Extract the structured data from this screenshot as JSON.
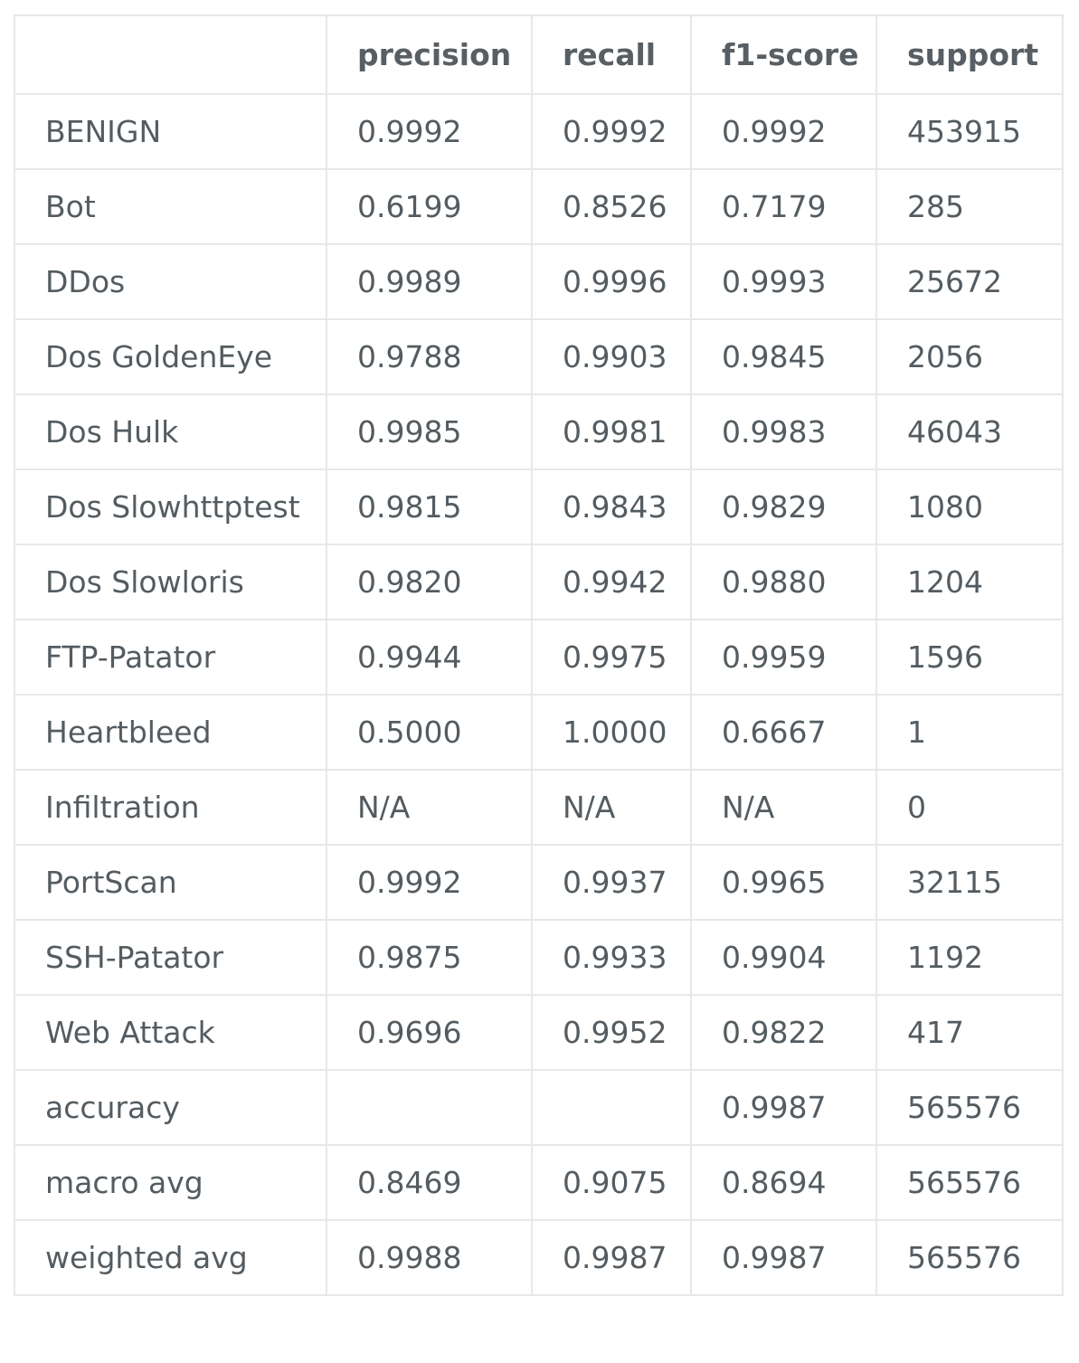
{
  "table": {
    "columns": [
      "",
      "precision",
      "recall",
      "f1-score",
      "support"
    ],
    "rows": [
      {
        "label": "BENIGN",
        "precision": "0.9992",
        "recall": "0.9992",
        "f1": "0.9992",
        "support": "453915"
      },
      {
        "label": "Bot",
        "precision": "0.6199",
        "recall": "0.8526",
        "f1": "0.7179",
        "support": "285"
      },
      {
        "label": "DDos",
        "precision": "0.9989",
        "recall": "0.9996",
        "f1": "0.9993",
        "support": "25672"
      },
      {
        "label": "Dos GoldenEye",
        "precision": "0.9788",
        "recall": "0.9903",
        "f1": "0.9845",
        "support": "2056"
      },
      {
        "label": "Dos Hulk",
        "precision": "0.9985",
        "recall": "0.9981",
        "f1": "0.9983",
        "support": "46043"
      },
      {
        "label": "Dos Slowhttptest",
        "precision": "0.9815",
        "recall": "0.9843",
        "f1": "0.9829",
        "support": "1080"
      },
      {
        "label": "Dos Slowloris",
        "precision": "0.9820",
        "recall": "0.9942",
        "f1": "0.9880",
        "support": "1204"
      },
      {
        "label": "FTP-Patator",
        "precision": "0.9944",
        "recall": "0.9975",
        "f1": "0.9959",
        "support": "1596"
      },
      {
        "label": "Heartbleed",
        "precision": "0.5000",
        "recall": "1.0000",
        "f1": "0.6667",
        "support": "1"
      },
      {
        "label": "Infiltration",
        "precision": "N/A",
        "recall": "N/A",
        "f1": "N/A",
        "support": "0"
      },
      {
        "label": "PortScan",
        "precision": "0.9992",
        "recall": "0.9937",
        "f1": "0.9965",
        "support": "32115"
      },
      {
        "label": "SSH-Patator",
        "precision": "0.9875",
        "recall": "0.9933",
        "f1": "0.9904",
        "support": "1192"
      },
      {
        "label": "Web Attack",
        "precision": "0.9696",
        "recall": "0.9952",
        "f1": "0.9822",
        "support": "417"
      },
      {
        "label": "accuracy",
        "precision": "",
        "recall": "",
        "f1": "0.9987",
        "support": "565576"
      },
      {
        "label": "macro avg",
        "precision": "0.8469",
        "recall": "0.9075",
        "f1": "0.8694",
        "support": "565576"
      },
      {
        "label": "weighted avg",
        "precision": "0.9988",
        "recall": "0.9987",
        "f1": "0.9987",
        "support": "565576"
      }
    ]
  }
}
